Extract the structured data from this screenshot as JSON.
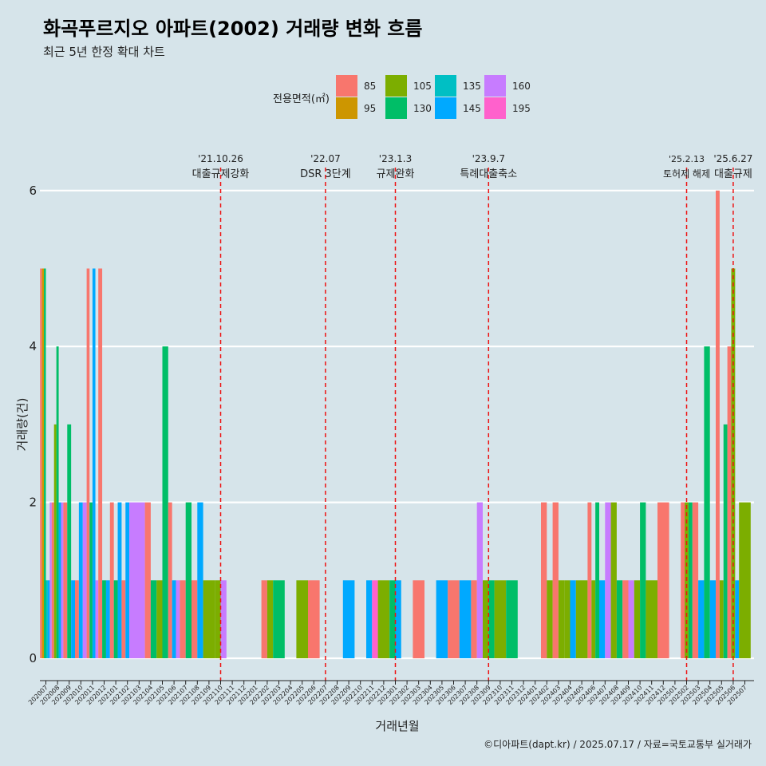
{
  "chart_data": {
    "type": "bar",
    "title": "화곡푸르지오 아파트(2002) 거래량 변화 흐름",
    "subtitle": "최근 5년 한정 확대 차트",
    "xlabel": "거래년월",
    "ylabel": "거래량(건)",
    "ylim": [
      0,
      6
    ],
    "yticks": [
      0,
      2,
      4,
      6
    ],
    "grid": true,
    "legend": {
      "title": "전용면적(㎡)",
      "position": "top",
      "entries": [
        {
          "label": "85",
          "color": "#F8766D"
        },
        {
          "label": "95",
          "color": "#CD9600"
        },
        {
          "label": "105",
          "color": "#7CAE00"
        },
        {
          "label": "130",
          "color": "#00BE67"
        },
        {
          "label": "135",
          "color": "#00BFC4"
        },
        {
          "label": "145",
          "color": "#00A9FF"
        },
        {
          "label": "160",
          "color": "#C77CFF"
        },
        {
          "label": "195",
          "color": "#FF61CC"
        }
      ]
    },
    "categories": [
      "202007",
      "202008",
      "202009",
      "202010",
      "202011",
      "202012",
      "202101",
      "202102",
      "202103",
      "202104",
      "202105",
      "202106",
      "202107",
      "202108",
      "202109",
      "202110",
      "202111",
      "202112",
      "202201",
      "202202",
      "202203",
      "202204",
      "202205",
      "202206",
      "202207",
      "202208",
      "202209",
      "202210",
      "202211",
      "202212",
      "202301",
      "202302",
      "202303",
      "202304",
      "202305",
      "202306",
      "202307",
      "202308",
      "202309",
      "202310",
      "202311",
      "202312",
      "202401",
      "202402",
      "202403",
      "202404",
      "202405",
      "202406",
      "202407",
      "202408",
      "202409",
      "202410",
      "202411",
      "202412",
      "202501",
      "202502",
      "202503",
      "202504",
      "202505",
      "202506",
      "202507"
    ],
    "bars": [
      {
        "month": "202007",
        "values": [
          [
            "85",
            5
          ],
          [
            "95",
            5
          ],
          [
            "130",
            5
          ],
          [
            "135",
            1
          ],
          [
            "145",
            1
          ],
          [
            "160",
            2
          ]
        ]
      },
      {
        "month": "202008",
        "values": [
          [
            "85",
            2
          ],
          [
            "105",
            3
          ],
          [
            "130",
            4
          ],
          [
            "145",
            2
          ],
          [
            "160",
            2
          ]
        ]
      },
      {
        "month": "202009",
        "values": [
          [
            "85",
            2
          ],
          [
            "130",
            3
          ],
          [
            "145",
            1
          ]
        ]
      },
      {
        "month": "202010",
        "values": [
          [
            "85",
            1
          ],
          [
            "145",
            2
          ],
          [
            "160",
            2
          ]
        ]
      },
      {
        "month": "202011",
        "values": [
          [
            "85",
            5
          ],
          [
            "130",
            2
          ],
          [
            "145",
            5
          ],
          [
            "160",
            1
          ]
        ]
      },
      {
        "month": "202012",
        "values": [
          [
            "85",
            5
          ],
          [
            "130",
            1
          ],
          [
            "145",
            1
          ]
        ]
      },
      {
        "month": "202101",
        "values": [
          [
            "85",
            2
          ],
          [
            "130",
            1
          ],
          [
            "145",
            2
          ]
        ]
      },
      {
        "month": "202102",
        "values": [
          [
            "85",
            1
          ],
          [
            "145",
            2
          ],
          [
            "160",
            2
          ]
        ]
      },
      {
        "month": "202103",
        "values": [
          [
            "160",
            2
          ]
        ]
      },
      {
        "month": "202104",
        "values": [
          [
            "85",
            2
          ],
          [
            "130",
            1
          ]
        ]
      },
      {
        "month": "202105",
        "values": [
          [
            "105",
            1
          ],
          [
            "130",
            4
          ]
        ]
      },
      {
        "month": "202106",
        "values": [
          [
            "85",
            2
          ],
          [
            "145",
            1
          ],
          [
            "160",
            1
          ]
        ]
      },
      {
        "month": "202107",
        "values": [
          [
            "85",
            1
          ],
          [
            "130",
            2
          ]
        ]
      },
      {
        "month": "202108",
        "values": [
          [
            "85",
            1
          ],
          [
            "145",
            2
          ]
        ]
      },
      {
        "month": "202109",
        "values": [
          [
            "105",
            1
          ]
        ]
      },
      {
        "month": "202110",
        "values": [
          [
            "105",
            1
          ],
          [
            "160",
            1
          ]
        ]
      },
      {
        "month": "202202",
        "values": [
          [
            "85",
            1
          ],
          [
            "105",
            1
          ]
        ]
      },
      {
        "month": "202203",
        "values": [
          [
            "130",
            1
          ]
        ]
      },
      {
        "month": "202205",
        "values": [
          [
            "105",
            1
          ]
        ]
      },
      {
        "month": "202206",
        "values": [
          [
            "85",
            1
          ]
        ]
      },
      {
        "month": "202209",
        "values": [
          [
            "145",
            1
          ]
        ]
      },
      {
        "month": "202211",
        "values": [
          [
            "145",
            1
          ],
          [
            "195",
            1
          ]
        ]
      },
      {
        "month": "202212",
        "values": [
          [
            "105",
            1
          ]
        ]
      },
      {
        "month": "202301",
        "values": [
          [
            "145",
            1
          ],
          [
            "130",
            1
          ]
        ]
      },
      {
        "month": "202303",
        "values": [
          [
            "85",
            1
          ]
        ]
      },
      {
        "month": "202305",
        "values": [
          [
            "145",
            1
          ]
        ]
      },
      {
        "month": "202306",
        "values": [
          [
            "85",
            1
          ]
        ]
      },
      {
        "month": "202307",
        "values": [
          [
            "145",
            1
          ]
        ]
      },
      {
        "month": "202308",
        "values": [
          [
            "85",
            1
          ],
          [
            "160",
            2
          ]
        ]
      },
      {
        "month": "202309",
        "values": [
          [
            "105",
            1
          ],
          [
            "130",
            1
          ]
        ]
      },
      {
        "month": "202310",
        "values": [
          [
            "105",
            1
          ]
        ]
      },
      {
        "month": "202311",
        "values": [
          [
            "130",
            1
          ]
        ]
      },
      {
        "month": "202402",
        "values": [
          [
            "85",
            2
          ],
          [
            "105",
            1
          ]
        ]
      },
      {
        "month": "202403",
        "values": [
          [
            "85",
            2
          ],
          [
            "105",
            1
          ]
        ]
      },
      {
        "month": "202404",
        "values": [
          [
            "105",
            1
          ],
          [
            "145",
            1
          ]
        ]
      },
      {
        "month": "202405",
        "values": [
          [
            "105",
            1
          ]
        ]
      },
      {
        "month": "202406",
        "values": [
          [
            "85",
            2
          ],
          [
            "105",
            1
          ],
          [
            "130",
            2
          ]
        ]
      },
      {
        "month": "202407",
        "values": [
          [
            "145",
            1
          ],
          [
            "160",
            2
          ]
        ]
      },
      {
        "month": "202408",
        "values": [
          [
            "105",
            2
          ],
          [
            "130",
            1
          ]
        ]
      },
      {
        "month": "202409",
        "values": [
          [
            "85",
            1
          ],
          [
            "160",
            1
          ]
        ]
      },
      {
        "month": "202410",
        "values": [
          [
            "105",
            1
          ],
          [
            "130",
            2
          ]
        ]
      },
      {
        "month": "202411",
        "values": [
          [
            "105",
            1
          ]
        ]
      },
      {
        "month": "202412",
        "values": [
          [
            "85",
            2
          ]
        ]
      },
      {
        "month": "202502",
        "values": [
          [
            "85",
            2
          ],
          [
            "105",
            2
          ],
          [
            "130",
            2
          ]
        ]
      },
      {
        "month": "202503",
        "values": [
          [
            "85",
            2
          ],
          [
            "145",
            1
          ]
        ]
      },
      {
        "month": "202504",
        "values": [
          [
            "130",
            4
          ],
          [
            "145",
            1
          ]
        ]
      },
      {
        "month": "202505",
        "values": [
          [
            "85",
            6
          ],
          [
            "105",
            1
          ],
          [
            "130",
            3
          ]
        ]
      },
      {
        "month": "202506",
        "values": [
          [
            "85",
            4
          ],
          [
            "105",
            5
          ],
          [
            "145",
            1
          ]
        ]
      },
      {
        "month": "202507",
        "values": [
          [
            "105",
            2
          ]
        ]
      }
    ],
    "annotations": [
      {
        "month": "202110",
        "date": "'21.10.26",
        "label": "대출규제강화"
      },
      {
        "month": "202207",
        "date": "'22.07",
        "label": "DSR 3단계"
      },
      {
        "month": "202301",
        "date": "'23.1.3",
        "label": "규제완화"
      },
      {
        "month": "202309",
        "date": "'23.9.7",
        "label": "특례대출축소"
      },
      {
        "month": "202502",
        "date": "'25.2.13",
        "label": "토허제 해제"
      },
      {
        "month": "202506",
        "date": "'25.6.27",
        "label": "대출규제"
      }
    ],
    "caption": "©디아파트(dapt.kr) / 2025.07.17 / 자료=국토교통부 실거래가"
  }
}
